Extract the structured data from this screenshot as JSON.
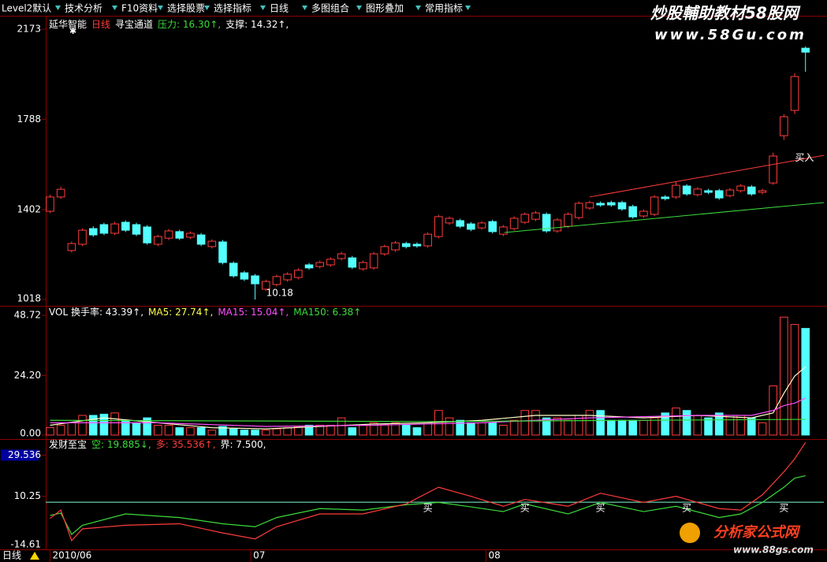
{
  "toolbar": [
    "Level2默认",
    "技术分析",
    "F10资料",
    "选择股票",
    "选择指标",
    "日线",
    "多图组合",
    "图形叠加",
    "常用指标"
  ],
  "watermark": {
    "top_title": "炒股輔助教材58股网",
    "top_url": "www.58Gu.com",
    "bottom_title": "分析家公式网",
    "bottom_url": "www.88gs.com"
  },
  "period_button": "日线",
  "chart_data": [
    {
      "type": "candlestick",
      "header": [
        {
          "text": "延华智能",
          "color": "#ffffff"
        },
        {
          "text": "日线",
          "color": "#ff3c3c"
        },
        {
          "text": "寻宝通道",
          "color": "#ffffff"
        },
        {
          "text": "压力: 16.30↑,",
          "color": "#3cdc3c"
        },
        {
          "text": "支撑: 14.32↑,",
          "color": "#ffffff"
        }
      ],
      "x": [
        0,
        1,
        2,
        3,
        4,
        5,
        6,
        7,
        8,
        9,
        10,
        11,
        12,
        13,
        14,
        15,
        16,
        17,
        18,
        19,
        20,
        21,
        22,
        23,
        24,
        25,
        26,
        27,
        28,
        29,
        30,
        31,
        32,
        33,
        34,
        35,
        36,
        37,
        38,
        39,
        40,
        41,
        42,
        43,
        44,
        45,
        46,
        47,
        48,
        49,
        50,
        51,
        52,
        53,
        54,
        55,
        56,
        57,
        58,
        59,
        60,
        61,
        62,
        63,
        64,
        65,
        66,
        67,
        68,
        69,
        70
      ],
      "open": [
        1395,
        1456,
        1227,
        1254,
        1321,
        1338,
        1301,
        1348,
        1338,
        1328,
        1254,
        1280,
        1308,
        1284,
        1294,
        1244,
        1264,
        1173,
        1132,
        1119,
        1062,
        1082,
        1102,
        1112,
        1166,
        1159,
        1166,
        1193,
        1196,
        1149,
        1153,
        1213,
        1230,
        1257,
        1254,
        1247,
        1287,
        1345,
        1355,
        1341,
        1324,
        1351,
        1297,
        1321,
        1348,
        1361,
        1382,
        1311,
        1331,
        1368,
        1409,
        1429,
        1432,
        1432,
        1415,
        1375,
        1382,
        1456,
        1456,
        1503,
        1466,
        1483,
        1483,
        1462,
        1483,
        1499,
        1476,
        1516,
        1718,
        1826,
        2092
      ],
      "high": [
        1466,
        1500,
        1265,
        1322,
        1331,
        1346,
        1350,
        1356,
        1346,
        1336,
        1295,
        1319,
        1316,
        1309,
        1302,
        1275,
        1272,
        1181,
        1140,
        1127,
        1103,
        1124,
        1134,
        1151,
        1174,
        1184,
        1198,
        1221,
        1204,
        1184,
        1221,
        1252,
        1268,
        1265,
        1262,
        1305,
        1380,
        1373,
        1363,
        1349,
        1353,
        1359,
        1336,
        1373,
        1390,
        1396,
        1390,
        1366,
        1390,
        1437,
        1440,
        1437,
        1440,
        1440,
        1423,
        1403,
        1464,
        1464,
        1520,
        1511,
        1498,
        1491,
        1491,
        1494,
        1511,
        1507,
        1491,
        1645,
        1810,
        1985,
        2100
      ],
      "low": [
        1387,
        1448,
        1219,
        1246,
        1286,
        1293,
        1293,
        1306,
        1289,
        1252,
        1246,
        1272,
        1272,
        1276,
        1246,
        1236,
        1168,
        1111,
        1097,
        1018,
        1054,
        1074,
        1094,
        1104,
        1145,
        1151,
        1158,
        1185,
        1148,
        1141,
        1145,
        1205,
        1222,
        1236,
        1239,
        1239,
        1279,
        1337,
        1323,
        1310,
        1316,
        1300,
        1289,
        1313,
        1340,
        1353,
        1303,
        1303,
        1323,
        1360,
        1401,
        1414,
        1414,
        1397,
        1363,
        1367,
        1374,
        1441,
        1448,
        1461,
        1458,
        1468,
        1444,
        1454,
        1475,
        1461,
        1468,
        1508,
        1700,
        1810,
        1991
      ],
      "close": [
        1456,
        1489,
        1257,
        1314,
        1294,
        1301,
        1341,
        1314,
        1297,
        1260,
        1287,
        1311,
        1280,
        1301,
        1254,
        1267,
        1176,
        1119,
        1105,
        1085,
        1095,
        1116,
        1126,
        1143,
        1153,
        1176,
        1190,
        1213,
        1156,
        1176,
        1213,
        1244,
        1260,
        1244,
        1247,
        1297,
        1372,
        1365,
        1331,
        1318,
        1345,
        1308,
        1328,
        1365,
        1382,
        1388,
        1311,
        1358,
        1382,
        1429,
        1432,
        1422,
        1422,
        1405,
        1371,
        1395,
        1456,
        1449,
        1506,
        1469,
        1490,
        1476,
        1452,
        1486,
        1503,
        1469,
        1483,
        1631,
        1799,
        1971,
        2075
      ],
      "up_color": "#ff3c3c",
      "down_color": "#54ffff",
      "xlim": [
        -0.4,
        71.7
      ],
      "ylim": [
        1001,
        2207
      ],
      "yticks": [
        1018,
        1402,
        1788,
        2173
      ],
      "lines": [
        {
          "color": "#ff3c3c",
          "x": [
            50,
            71.7
          ],
          "y": [
            1456,
            1634
          ]
        },
        {
          "color": "#3cdc3c",
          "x": [
            42.1,
            71.7
          ],
          "y": [
            1304,
            1432
          ]
        }
      ],
      "annotations": [
        {
          "text": "10.18",
          "x": 19,
          "y": 1018
        },
        {
          "text": "买入",
          "x": 68,
          "y": 1595
        }
      ]
    },
    {
      "type": "bar",
      "header": [
        {
          "text": "VOL 换手率: 43.39↑,",
          "color": "#ffffff"
        },
        {
          "text": "MA5: 27.74↑,",
          "color": "#ffff50"
        },
        {
          "text": "MA15: 15.04↑,",
          "color": "#ff50ff"
        },
        {
          "text": "MA150: 6.38↑",
          "color": "#3cdc3c"
        }
      ],
      "x": [
        0,
        1,
        2,
        3,
        4,
        5,
        6,
        7,
        8,
        9,
        10,
        11,
        12,
        13,
        14,
        15,
        16,
        17,
        18,
        19,
        20,
        21,
        22,
        23,
        24,
        25,
        26,
        27,
        28,
        29,
        30,
        31,
        32,
        33,
        34,
        35,
        36,
        37,
        38,
        39,
        40,
        41,
        42,
        43,
        44,
        45,
        46,
        47,
        48,
        49,
        50,
        51,
        52,
        53,
        54,
        55,
        56,
        57,
        58,
        59,
        60,
        61,
        62,
        63,
        64,
        65,
        66,
        67,
        68,
        69,
        70
      ],
      "values": [
        3,
        4,
        5,
        8,
        8,
        8.5,
        9,
        6,
        5,
        7,
        4,
        4,
        3,
        3,
        3,
        2,
        3.5,
        2.5,
        2,
        2,
        2,
        2.5,
        3,
        3.5,
        4,
        4,
        4,
        7,
        3,
        4,
        5,
        4.5,
        5,
        4,
        3,
        5,
        10,
        7,
        6,
        5,
        5,
        5,
        4,
        6,
        10,
        10,
        7,
        7,
        6,
        8,
        10,
        10,
        6,
        6,
        6,
        6,
        7,
        9,
        11,
        10,
        8,
        7,
        9,
        8,
        8,
        7,
        5,
        20,
        48,
        45,
        43.39
      ],
      "xlim": [
        -0.4,
        71.7
      ],
      "ylim": [
        -1.3,
        51.3
      ],
      "yticks": [
        {
          "value": 0,
          "label": "0.00"
        },
        {
          "value": 24.2,
          "label": "24.20"
        },
        {
          "value": 48.72,
          "label": "48.72"
        }
      ],
      "series": [
        {
          "color": "#ffffc8",
          "x": [
            0,
            5,
            10,
            15,
            20,
            25,
            30,
            35,
            40,
            45,
            50,
            55,
            60,
            65,
            67,
            68,
            69,
            70
          ],
          "values": [
            4,
            7,
            5,
            3,
            2.5,
            3.5,
            4.5,
            5,
            6,
            8,
            8,
            7,
            8,
            7,
            9,
            17,
            24,
            27.74
          ]
        },
        {
          "color": "#ff50ff",
          "x": [
            0,
            10,
            20,
            30,
            40,
            50,
            60,
            65,
            67,
            68,
            69,
            70
          ],
          "values": [
            5,
            5,
            3.5,
            4,
            5,
            7,
            8,
            8,
            10,
            12,
            13,
            15.04
          ]
        },
        {
          "color": "#3cdc3c",
          "x": [
            0,
            35,
            70
          ],
          "values": [
            6,
            5.5,
            6.38
          ]
        }
      ]
    },
    {
      "type": "line",
      "header": [
        {
          "text": "发财至宝",
          "color": "#ffffff"
        },
        {
          "text": "空: 19.885↓,",
          "color": "#3cdc3c"
        },
        {
          "text": "多: 35.536↑,",
          "color": "#ff3c3c"
        },
        {
          "text": "界: 7.500,",
          "color": "#ffffff"
        }
      ],
      "xlim": [
        -0.4,
        71.7
      ],
      "ylim": [
        -14.61,
        35.97
      ],
      "yticks": [
        29.536,
        10.25,
        -14.61
      ],
      "xticks": [
        {
          "value": 0,
          "label": "2010/06"
        },
        {
          "value": 18.6,
          "label": "07"
        },
        {
          "value": 40.4,
          "label": "08"
        }
      ],
      "series": [
        {
          "color": "#3cdc3c",
          "x": [
            0,
            1,
            2,
            3,
            7,
            12,
            16,
            19,
            21,
            25,
            29,
            33,
            36,
            39,
            42,
            44,
            48,
            51,
            55,
            58,
            62,
            64,
            66,
            68,
            69,
            70
          ],
          "values": [
            1.3,
            2.4,
            -7.6,
            -3.3,
            2,
            0.3,
            -2.6,
            -4,
            0.3,
            4.5,
            3.8,
            6.3,
            7.4,
            5.3,
            3.1,
            6.7,
            2,
            7.4,
            3.1,
            5.6,
            0.3,
            2,
            7.4,
            14.5,
            18.8,
            19.885
          ]
        },
        {
          "color": "#ff3c3c",
          "x": [
            0,
            1,
            2,
            3,
            7,
            12,
            16,
            19,
            21,
            25,
            29,
            33,
            36,
            39,
            42,
            44,
            48,
            51,
            55,
            58,
            62,
            64,
            66,
            68,
            69,
            70
          ],
          "values": [
            -0.1,
            3.8,
            -10.5,
            -5,
            -3.3,
            -2.6,
            -6.9,
            -9.7,
            -4,
            2,
            2,
            6.7,
            14.5,
            10.25,
            5.6,
            8.8,
            5.6,
            11.7,
            7.4,
            10.25,
            4.5,
            3.8,
            10.9,
            21.7,
            27.8,
            35.536
          ]
        }
      ],
      "hline": {
        "value": 7.5,
        "color": "#7fffd4"
      },
      "signals": [
        {
          "x": 35,
          "label": "买"
        },
        {
          "x": 44,
          "label": "买"
        },
        {
          "x": 51,
          "label": "买"
        },
        {
          "x": 59,
          "label": "买"
        },
        {
          "x": 68,
          "label": "买"
        }
      ]
    }
  ]
}
